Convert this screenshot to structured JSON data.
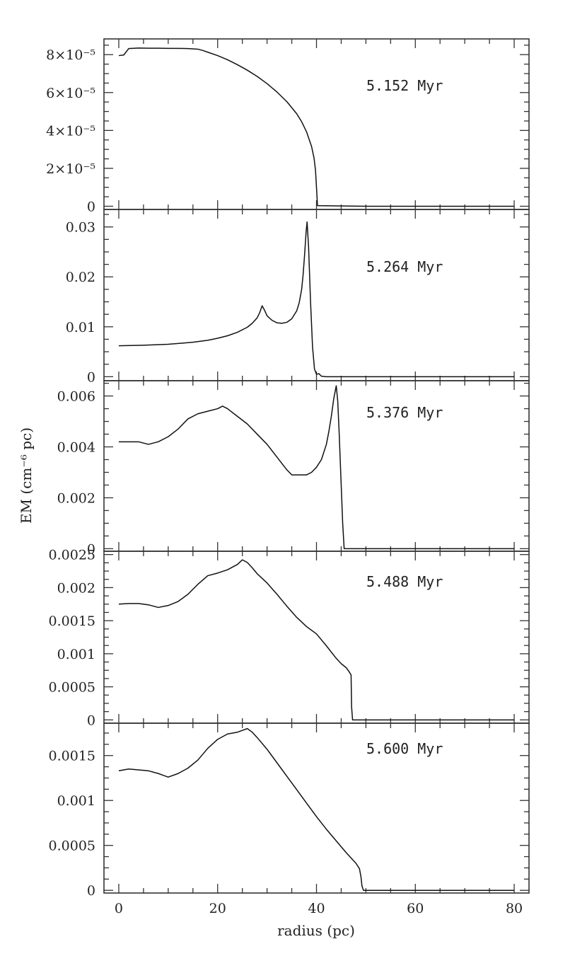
{
  "chart_data": {
    "type": "line",
    "xlabel": "radius (pc)",
    "ylabel": "EM  (cm⁻⁶ pc)",
    "xlim": [
      -3,
      83
    ],
    "x_ticks": [
      0,
      20,
      40,
      60,
      80
    ],
    "x_tick_labels": [
      "0",
      "20",
      "40",
      "60",
      "80"
    ],
    "grid": false,
    "panels": [
      {
        "label": "5.152 Myr",
        "ylim": [
          -1.7e-06,
          8.83e-05
        ],
        "y_ticks": [
          0,
          2e-05,
          4e-05,
          6e-05,
          8e-05
        ],
        "y_tick_labels": [
          "0",
          "2×10⁻⁵",
          "4×10⁻⁵",
          "6×10⁻⁵",
          "8×10⁻⁵"
        ],
        "x": [
          0,
          1,
          2,
          4,
          6,
          8,
          10,
          12,
          14,
          16,
          17,
          18,
          20,
          22,
          24,
          26,
          28,
          30,
          32,
          34,
          36,
          37,
          38,
          39,
          39.5,
          39.8,
          40,
          40.2,
          50,
          60,
          70,
          80
        ],
        "y": [
          7.95e-05,
          7.98e-05,
          8.32e-05,
          8.35e-05,
          8.34e-05,
          8.34e-05,
          8.33e-05,
          8.33e-05,
          8.32e-05,
          8.29e-05,
          8.22e-05,
          8.13e-05,
          7.95e-05,
          7.73e-05,
          7.47e-05,
          7.18e-05,
          6.85e-05,
          6.47e-05,
          6.03e-05,
          5.52e-05,
          4.88e-05,
          4.46e-05,
          3.92e-05,
          3.16e-05,
          2.55e-05,
          1.9e-05,
          1e-05,
          3e-07,
          0,
          0,
          0,
          0
        ]
      },
      {
        "label": "5.264 Myr",
        "ylim": [
          -0.0008,
          0.0335
        ],
        "y_ticks": [
          0,
          0.01,
          0.02,
          0.03
        ],
        "y_tick_labels": [
          "0",
          "0.01",
          "0.02",
          "0.03"
        ],
        "x": [
          0,
          5,
          10,
          15,
          18,
          20,
          22,
          24,
          26,
          27,
          28,
          28.5,
          29,
          29.5,
          30,
          31,
          32,
          33,
          34,
          35,
          36,
          36.5,
          37,
          37.3,
          37.6,
          37.9,
          38.1,
          38.4,
          38.8,
          39.2,
          39.6,
          40,
          40.5,
          41,
          42,
          50,
          60,
          70,
          80
        ],
        "y": [
          0.0062,
          0.0063,
          0.0065,
          0.0069,
          0.0073,
          0.0077,
          0.0082,
          0.0089,
          0.0099,
          0.0107,
          0.0118,
          0.0128,
          0.0142,
          0.0133,
          0.0122,
          0.0113,
          0.0108,
          0.0107,
          0.0109,
          0.0116,
          0.0132,
          0.0148,
          0.0175,
          0.0205,
          0.0245,
          0.029,
          0.031,
          0.026,
          0.015,
          0.006,
          0.0015,
          0.0005,
          0.0006,
          0.0001,
          0,
          0,
          0,
          0,
          0
        ]
      },
      {
        "label": "5.376 Myr",
        "ylim": [
          -0.0001,
          0.0066
        ],
        "y_ticks": [
          0,
          0.002,
          0.004,
          0.006
        ],
        "y_tick_labels": [
          "0",
          "0.002",
          "0.004",
          "0.006"
        ],
        "x": [
          0,
          2,
          4,
          6,
          8,
          10,
          12,
          14,
          16,
          18,
          20,
          21,
          22,
          24,
          26,
          28,
          30,
          32,
          34,
          35,
          36,
          37,
          38,
          39,
          40,
          41,
          42,
          42.5,
          43,
          43.5,
          43.8,
          44,
          44.3,
          44.6,
          45,
          45.3,
          45.6,
          50,
          60,
          70,
          80
        ],
        "y": [
          0.0042,
          0.0042,
          0.0042,
          0.0041,
          0.0042,
          0.0044,
          0.0047,
          0.0051,
          0.0053,
          0.0054,
          0.0055,
          0.0056,
          0.0055,
          0.0052,
          0.0049,
          0.0045,
          0.0041,
          0.0036,
          0.0031,
          0.0029,
          0.0029,
          0.0029,
          0.0029,
          0.003,
          0.0032,
          0.0035,
          0.0041,
          0.0046,
          0.0052,
          0.0059,
          0.0062,
          0.0064,
          0.0058,
          0.0045,
          0.0025,
          0.001,
          0,
          0,
          0,
          0,
          0
        ]
      },
      {
        "label": "5.488 Myr",
        "ylim": [
          -5e-05,
          0.00255
        ],
        "y_ticks": [
          0,
          0.0005,
          0.001,
          0.0015,
          0.002,
          0.0025
        ],
        "y_tick_labels": [
          "0",
          "0.0005",
          "0.001",
          "0.0015",
          "0.002",
          "0.0025"
        ],
        "x": [
          0,
          2,
          4,
          6,
          7,
          8,
          10,
          12,
          14,
          16,
          18,
          20,
          22,
          24,
          25,
          26,
          27,
          28,
          30,
          32,
          34,
          36,
          38,
          40,
          42,
          44,
          45,
          46,
          46.5,
          47,
          47.1,
          47.3,
          50,
          60,
          70,
          80
        ],
        "y": [
          0.00175,
          0.00176,
          0.00176,
          0.00174,
          0.00172,
          0.0017,
          0.00173,
          0.00179,
          0.0019,
          0.00205,
          0.00218,
          0.00222,
          0.00227,
          0.00235,
          0.00242,
          0.00238,
          0.0023,
          0.00221,
          0.00207,
          0.0019,
          0.00172,
          0.00155,
          0.00141,
          0.0013,
          0.00112,
          0.00093,
          0.00085,
          0.00079,
          0.00074,
          0.00068,
          0.0002,
          0,
          0,
          0,
          0,
          0
        ]
      },
      {
        "label": "5.600 Myr",
        "ylim": [
          -3e-05,
          0.00186
        ],
        "y_ticks": [
          0,
          0.0005,
          0.001,
          0.0015
        ],
        "y_tick_labels": [
          "0",
          "0.0005",
          "0.001",
          "0.0015"
        ],
        "x": [
          0,
          2,
          4,
          6,
          8,
          9,
          10,
          12,
          14,
          16,
          18,
          20,
          22,
          24,
          25,
          26,
          27,
          28,
          30,
          32,
          34,
          36,
          38,
          40,
          42,
          44,
          46,
          48,
          48.7,
          49,
          49.2,
          49.5,
          50,
          60,
          70,
          80
        ],
        "y": [
          0.00133,
          0.00135,
          0.00134,
          0.00133,
          0.0013,
          0.00128,
          0.00126,
          0.0013,
          0.00136,
          0.00145,
          0.00158,
          0.00168,
          0.00174,
          0.00176,
          0.00178,
          0.0018,
          0.00176,
          0.0017,
          0.00157,
          0.00142,
          0.00127,
          0.00112,
          0.00097,
          0.00082,
          0.00068,
          0.00055,
          0.00042,
          0.0003,
          0.00024,
          0.00015,
          5e-05,
          0,
          0,
          0,
          0,
          0
        ]
      }
    ]
  }
}
